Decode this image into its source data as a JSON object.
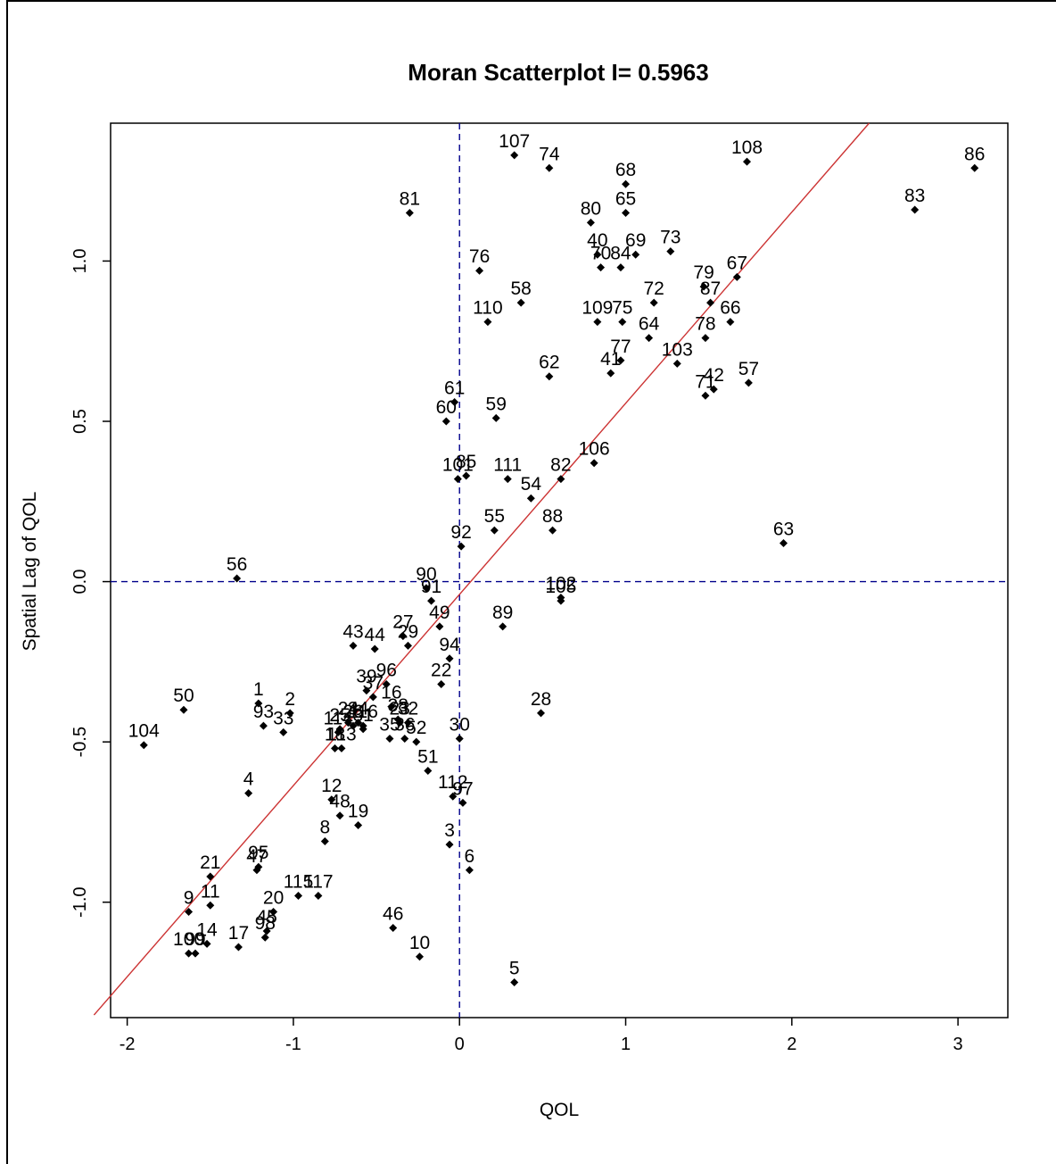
{
  "chart_data": {
    "type": "scatter",
    "title": "Moran Scatterplot I=  0.5963",
    "xlabel": "QOL",
    "ylabel": "Spatial Lag of QOL",
    "xlim": [
      -2.1,
      3.3
    ],
    "ylim": [
      -1.36,
      1.43
    ],
    "x_ticks": [
      -2,
      -1,
      0,
      1,
      2,
      3
    ],
    "x_tick_labels": [
      "-2",
      "-1",
      "0",
      "1",
      "2",
      "3"
    ],
    "y_ticks": [
      -1.0,
      -0.5,
      0.0,
      0.5,
      1.0
    ],
    "y_tick_labels": [
      "-1.0",
      "-0.5",
      "0.0",
      "0.5",
      "1.0"
    ],
    "grid": false,
    "reference_lines": {
      "x": 0,
      "y": 0,
      "style": "dashed",
      "color": "#00008B"
    },
    "regression_line": {
      "slope": 0.5963,
      "intercept": -0.04,
      "color": "#CC3333"
    },
    "points": [
      {
        "label": "1",
        "x": -1.21,
        "y": -0.38
      },
      {
        "label": "2",
        "x": -1.02,
        "y": -0.41
      },
      {
        "label": "3",
        "x": -0.06,
        "y": -0.82
      },
      {
        "label": "4",
        "x": -1.27,
        "y": -0.66
      },
      {
        "label": "5",
        "x": 0.33,
        "y": -1.25
      },
      {
        "label": "6",
        "x": 0.06,
        "y": -0.9
      },
      {
        "label": "8",
        "x": -0.81,
        "y": -0.81
      },
      {
        "label": "9",
        "x": -1.63,
        "y": -1.03
      },
      {
        "label": "10",
        "x": -0.24,
        "y": -1.17
      },
      {
        "label": "11",
        "x": -1.5,
        "y": -1.01
      },
      {
        "label": "12",
        "x": -0.77,
        "y": -0.68
      },
      {
        "label": "14",
        "x": -1.52,
        "y": -1.13
      },
      {
        "label": "16",
        "x": -0.41,
        "y": -0.39
      },
      {
        "label": "17",
        "x": -1.33,
        "y": -1.14
      },
      {
        "label": "18",
        "x": -0.75,
        "y": -0.52
      },
      {
        "label": "19",
        "x": -0.61,
        "y": -0.76
      },
      {
        "label": "20",
        "x": -1.12,
        "y": -1.03
      },
      {
        "label": "21",
        "x": -1.5,
        "y": -0.92
      },
      {
        "label": "22",
        "x": -0.11,
        "y": -0.32
      },
      {
        "label": "23",
        "x": -0.36,
        "y": -0.44
      },
      {
        "label": "24",
        "x": -0.67,
        "y": -0.44
      },
      {
        "label": "25",
        "x": -0.72,
        "y": -0.46
      },
      {
        "label": "26",
        "x": -0.64,
        "y": -0.45
      },
      {
        "label": "27",
        "x": -0.34,
        "y": -0.17
      },
      {
        "label": "28",
        "x": 0.49,
        "y": -0.41
      },
      {
        "label": "29",
        "x": -0.31,
        "y": -0.2
      },
      {
        "label": "30",
        "x": 0.0,
        "y": -0.49
      },
      {
        "label": "31",
        "x": -0.58,
        "y": -0.46
      },
      {
        "label": "32",
        "x": -0.31,
        "y": -0.44
      },
      {
        "label": "33",
        "x": -1.06,
        "y": -0.47
      },
      {
        "label": "34",
        "x": -0.61,
        "y": -0.44
      },
      {
        "label": "35",
        "x": -0.42,
        "y": -0.49
      },
      {
        "label": "36",
        "x": -0.33,
        "y": -0.49
      },
      {
        "label": "37",
        "x": -0.52,
        "y": -0.36
      },
      {
        "label": "38",
        "x": -0.37,
        "y": -0.43
      },
      {
        "label": "39",
        "x": -0.56,
        "y": -0.34
      },
      {
        "label": "40",
        "x": 0.83,
        "y": 1.02
      },
      {
        "label": "41",
        "x": 0.91,
        "y": 0.65
      },
      {
        "label": "42",
        "x": 1.53,
        "y": 0.6
      },
      {
        "label": "43",
        "x": -0.64,
        "y": -0.2
      },
      {
        "label": "44",
        "x": -0.51,
        "y": -0.21
      },
      {
        "label": "45",
        "x": -1.16,
        "y": -1.09
      },
      {
        "label": "46",
        "x": -0.4,
        "y": -1.08
      },
      {
        "label": "47",
        "x": -1.22,
        "y": -0.9
      },
      {
        "label": "48",
        "x": -0.72,
        "y": -0.73
      },
      {
        "label": "49",
        "x": -0.12,
        "y": -0.14
      },
      {
        "label": "50",
        "x": -1.66,
        "y": -0.4
      },
      {
        "label": "51",
        "x": -0.19,
        "y": -0.59
      },
      {
        "label": "52",
        "x": -0.26,
        "y": -0.5
      },
      {
        "label": "54",
        "x": 0.43,
        "y": 0.26
      },
      {
        "label": "55",
        "x": 0.21,
        "y": 0.16
      },
      {
        "label": "56",
        "x": -1.34,
        "y": 0.01
      },
      {
        "label": "57",
        "x": 1.74,
        "y": 0.62
      },
      {
        "label": "58",
        "x": 0.37,
        "y": 0.87
      },
      {
        "label": "59",
        "x": 0.22,
        "y": 0.51
      },
      {
        "label": "60",
        "x": -0.08,
        "y": 0.5
      },
      {
        "label": "61",
        "x": -0.03,
        "y": 0.56
      },
      {
        "label": "62",
        "x": 0.54,
        "y": 0.64
      },
      {
        "label": "63",
        "x": 1.95,
        "y": 0.12
      },
      {
        "label": "64",
        "x": 1.14,
        "y": 0.76
      },
      {
        "label": "65",
        "x": 1.0,
        "y": 1.15
      },
      {
        "label": "66",
        "x": 1.63,
        "y": 0.81
      },
      {
        "label": "67",
        "x": 1.67,
        "y": 0.95
      },
      {
        "label": "68",
        "x": 1.0,
        "y": 1.24
      },
      {
        "label": "69",
        "x": 1.06,
        "y": 1.02
      },
      {
        "label": "70",
        "x": 0.85,
        "y": 0.98
      },
      {
        "label": "71",
        "x": 1.48,
        "y": 0.58
      },
      {
        "label": "72",
        "x": 1.17,
        "y": 0.87
      },
      {
        "label": "73",
        "x": 1.27,
        "y": 1.03
      },
      {
        "label": "74",
        "x": 0.54,
        "y": 1.29
      },
      {
        "label": "75",
        "x": 0.98,
        "y": 0.81
      },
      {
        "label": "76",
        "x": 0.12,
        "y": 0.97
      },
      {
        "label": "77",
        "x": 0.97,
        "y": 0.69
      },
      {
        "label": "78",
        "x": 1.48,
        "y": 0.76
      },
      {
        "label": "79",
        "x": 1.47,
        "y": 0.92
      },
      {
        "label": "80",
        "x": 0.79,
        "y": 1.12
      },
      {
        "label": "81",
        "x": -0.3,
        "y": 1.15
      },
      {
        "label": "82",
        "x": 0.61,
        "y": 0.32
      },
      {
        "label": "83",
        "x": 2.74,
        "y": 1.16
      },
      {
        "label": "84",
        "x": 0.97,
        "y": 0.98
      },
      {
        "label": "85",
        "x": 0.04,
        "y": 0.33
      },
      {
        "label": "86",
        "x": 3.1,
        "y": 1.29
      },
      {
        "label": "87",
        "x": 1.51,
        "y": 0.87
      },
      {
        "label": "88",
        "x": 0.56,
        "y": 0.16
      },
      {
        "label": "89",
        "x": 0.26,
        "y": -0.14
      },
      {
        "label": "90",
        "x": -0.2,
        "y": -0.02
      },
      {
        "label": "91",
        "x": -0.17,
        "y": -0.06
      },
      {
        "label": "92",
        "x": 0.01,
        "y": 0.11
      },
      {
        "label": "93",
        "x": -1.18,
        "y": -0.45
      },
      {
        "label": "94",
        "x": -0.06,
        "y": -0.24
      },
      {
        "label": "95",
        "x": -1.21,
        "y": -0.89
      },
      {
        "label": "96",
        "x": -0.44,
        "y": -0.32
      },
      {
        "label": "97",
        "x": 0.02,
        "y": -0.69
      },
      {
        "label": "98",
        "x": -1.17,
        "y": -1.11
      },
      {
        "label": "99",
        "x": -1.59,
        "y": -1.16
      },
      {
        "label": "100",
        "x": -1.63,
        "y": -1.16
      },
      {
        "label": "101",
        "x": -0.01,
        "y": 0.32
      },
      {
        "label": "102",
        "x": 0.61,
        "y": -0.05
      },
      {
        "label": "103",
        "x": 1.31,
        "y": 0.68
      },
      {
        "label": "104",
        "x": -1.9,
        "y": -0.51
      },
      {
        "label": "105",
        "x": 0.61,
        "y": -0.06
      },
      {
        "label": "106",
        "x": 0.81,
        "y": 0.37
      },
      {
        "label": "107",
        "x": 0.33,
        "y": 1.33
      },
      {
        "label": "108",
        "x": 1.73,
        "y": 1.31
      },
      {
        "label": "109",
        "x": 0.83,
        "y": 0.81
      },
      {
        "label": "110",
        "x": 0.17,
        "y": 0.81
      },
      {
        "label": "111",
        "x": 0.29,
        "y": 0.32
      },
      {
        "label": "112",
        "x": -0.04,
        "y": -0.67
      },
      {
        "label": "113",
        "x": -0.71,
        "y": -0.52
      },
      {
        "label": "114",
        "x": -0.73,
        "y": -0.47
      },
      {
        "label": "115",
        "x": -0.97,
        "y": -0.98
      },
      {
        "label": "116",
        "x": -0.58,
        "y": -0.45
      },
      {
        "label": "117",
        "x": -0.85,
        "y": -0.98
      }
    ]
  }
}
